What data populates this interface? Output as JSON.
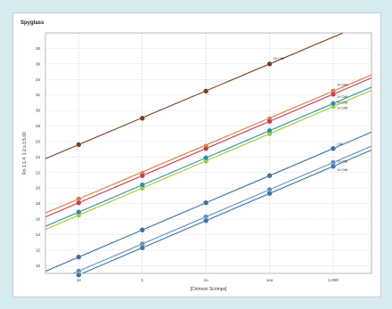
{
  "chart_data": {
    "type": "scatter",
    "title": "Spyglass",
    "xlabel": "[Crimson Scrimps]",
    "ylabel": "Rn 1.1.4: 1:2.s.3.5.00",
    "x_scale": "log",
    "x_ticks": [
      1,
      10,
      100,
      1000,
      10000
    ],
    "x_tick_labels": [
      "1e",
      "1",
      "1o",
      "1oo",
      "1,000"
    ],
    "xlim": [
      0.3,
      40000
    ],
    "ylim": [
      9,
      40
    ],
    "y_ticks": [
      10,
      12,
      14,
      16,
      18,
      20,
      22,
      24,
      26,
      28,
      30,
      32,
      34,
      36,
      38
    ],
    "grid": true,
    "series": [
      {
        "name": "1H Ctf8",
        "color": "#7b3e22",
        "x": [
          1,
          10,
          100,
          1000
        ],
        "y": [
          25.6,
          29.0,
          32.5,
          36.0
        ]
      },
      {
        "name": "1H Ctf8",
        "color": "#d97a3c",
        "x": [
          1,
          10,
          100,
          1000,
          10000
        ],
        "y": [
          18.6,
          21.9,
          25.4,
          28.9,
          32.5
        ]
      },
      {
        "name": "1H Ctf8",
        "color": "#c93a4e",
        "x": [
          1,
          10,
          100,
          1000,
          10000
        ],
        "y": [
          18.1,
          21.6,
          25.1,
          28.6,
          32.1
        ]
      },
      {
        "name": "1H Ctf8",
        "color": "#9acd32",
        "x": [
          1,
          10,
          100,
          1000,
          10000
        ],
        "y": [
          16.5,
          20.0,
          23.5,
          27.0,
          30.5
        ]
      },
      {
        "name": "1H Ctf8",
        "color": "#2f8fa0",
        "x": [
          1,
          10,
          100,
          1000,
          10000
        ],
        "y": [
          16.9,
          20.4,
          23.9,
          27.4,
          30.9
        ]
      },
      {
        "name": "Ctf8",
        "color": "#3d6f99",
        "x": [
          1,
          10,
          100,
          1000,
          10000
        ],
        "y": [
          11.1,
          14.6,
          18.1,
          21.6,
          25.1
        ]
      },
      {
        "name": "1H Ctf8",
        "color": "#5f8fbf",
        "x": [
          1,
          10,
          100,
          1000,
          10000
        ],
        "y": [
          9.3,
          12.8,
          16.3,
          19.8,
          23.3
        ]
      },
      {
        "name": "1H Ctf8",
        "color": "#3f73a8",
        "x": [
          1,
          10,
          100,
          1000,
          10000
        ],
        "y": [
          8.8,
          12.3,
          15.8,
          19.3,
          22.8
        ]
      }
    ]
  }
}
